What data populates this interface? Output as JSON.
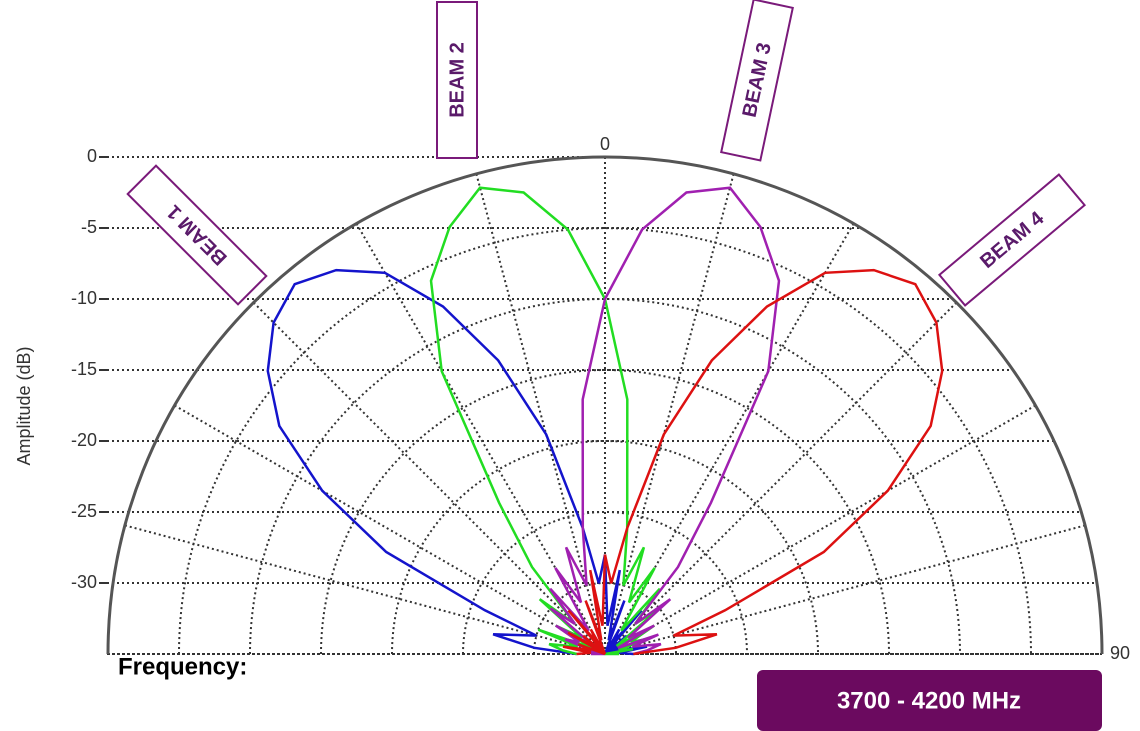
{
  "chart_data": {
    "type": "polar",
    "y_label": "Amplitude (dB)",
    "rlim": [
      -35,
      0
    ],
    "rticks": [
      0,
      -5,
      -10,
      -15,
      -20,
      -25,
      -30
    ],
    "thetaticks": [
      0,
      90
    ],
    "thetagrid": [
      -90,
      -75,
      -60,
      -45,
      -30,
      -15,
      0,
      15,
      30,
      45,
      60,
      75,
      90
    ],
    "theta": [
      -90,
      -85,
      -80,
      -75,
      -70,
      -65,
      -60,
      -55,
      -50,
      -45,
      -40,
      -35,
      -30,
      -25,
      -20,
      -15,
      -10,
      -5,
      0,
      5,
      10,
      15,
      20,
      25,
      30,
      35,
      40,
      45,
      50,
      55,
      60,
      65,
      70,
      75,
      80,
      85,
      90
    ],
    "series": [
      {
        "name": "BEAM 1",
        "color": "#1414cc",
        "values": [
          -33,
          -30,
          -27,
          -30,
          -26,
          -18,
          -12,
          -7,
          -4,
          -2,
          -1,
          -2,
          -4,
          -8,
          -13,
          -19,
          -26,
          -30,
          -28,
          -33,
          -29,
          -34,
          -31,
          -35,
          -33,
          -34,
          -31,
          -35,
          -33,
          -34,
          -32,
          -35,
          -33,
          -34,
          -32,
          -34,
          -33
        ]
      },
      {
        "name": "BEAM 2",
        "color": "#22dd22",
        "values": [
          -33,
          -32,
          -31,
          -33,
          -30,
          -34,
          -31,
          -33,
          -29,
          -32,
          -27,
          -22,
          -12,
          -6,
          -3,
          -1,
          -2,
          -5,
          -10,
          -17,
          -26,
          -30,
          -27,
          -31,
          -28,
          -33,
          -29,
          -32,
          -30,
          -34,
          -31,
          -33,
          -32,
          -34,
          -33,
          -35,
          -34
        ]
      },
      {
        "name": "BEAM 3",
        "color": "#a020b0",
        "values": [
          -34,
          -35,
          -33,
          -34,
          -32,
          -33,
          -31,
          -34,
          -30,
          -32,
          -29,
          -33,
          -28,
          -31,
          -27,
          -30,
          -26,
          -17,
          -10,
          -5,
          -2,
          -1,
          -3,
          -6,
          -12,
          -22,
          -27,
          -32,
          -29,
          -33,
          -31,
          -34,
          -31,
          -33,
          -31,
          -32,
          -33
        ]
      },
      {
        "name": "BEAM 4",
        "color": "#dd1111",
        "values": [
          -33,
          -34,
          -32,
          -34,
          -33,
          -35,
          -32,
          -34,
          -33,
          -35,
          -31,
          -34,
          -33,
          -35,
          -31,
          -34,
          -29,
          -33,
          -28,
          -30,
          -26,
          -19,
          -13,
          -8,
          -4,
          -2,
          -1,
          -2,
          -4,
          -7,
          -12,
          -18,
          -26,
          -30,
          -27,
          -30,
          -33
        ]
      }
    ],
    "frequency_label": "Frequency:",
    "frequency_value": "3700 - 4200 MHz"
  }
}
